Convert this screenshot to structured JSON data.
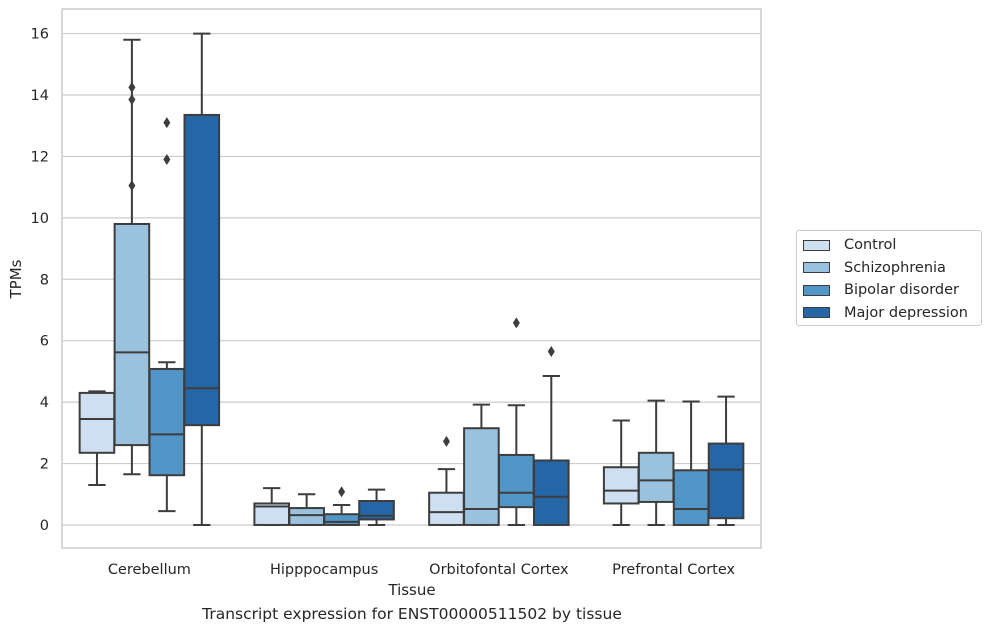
{
  "chart_data": {
    "type": "box",
    "xlabel": "Tissue",
    "ylabel": "TPMs",
    "ylim": [
      -0.75,
      16.8
    ],
    "yticks": [
      0,
      2,
      4,
      6,
      8,
      10,
      12,
      14,
      16
    ],
    "grid": "y",
    "legend_placement": "right",
    "categories": [
      "Cerebellum",
      "Hipppocampus",
      "Orbitofontal Cortex",
      "Prefrontal Cortex"
    ],
    "series": [
      {
        "name": "Control",
        "color": "#cddff0",
        "boxes": [
          {
            "whislo": 1.3,
            "q1": 2.35,
            "med": 3.45,
            "q3": 4.3,
            "whishi": 4.35,
            "fliers": []
          },
          {
            "whislo": 0.0,
            "q1": 0.0,
            "med": 0.6,
            "q3": 0.7,
            "whishi": 1.2,
            "fliers": []
          },
          {
            "whislo": 0.0,
            "q1": 0.0,
            "med": 0.42,
            "q3": 1.05,
            "whishi": 1.82,
            "fliers": [
              2.72
            ]
          },
          {
            "whislo": 0.0,
            "q1": 0.7,
            "med": 1.12,
            "q3": 1.88,
            "whishi": 3.4,
            "fliers": []
          }
        ]
      },
      {
        "name": "Schizophrenia",
        "color": "#9ac2de",
        "boxes": [
          {
            "whislo": 1.65,
            "q1": 2.6,
            "med": 5.62,
            "q3": 9.8,
            "whishi": 15.8,
            "fliers": [
              11.05,
              13.85,
              14.25
            ]
          },
          {
            "whislo": 0.0,
            "q1": 0.0,
            "med": 0.32,
            "q3": 0.55,
            "whishi": 1.0,
            "fliers": []
          },
          {
            "whislo": 0.0,
            "q1": 0.0,
            "med": 0.52,
            "q3": 3.15,
            "whishi": 3.92,
            "fliers": []
          },
          {
            "whislo": 0.0,
            "q1": 0.75,
            "med": 1.45,
            "q3": 2.35,
            "whishi": 4.05,
            "fliers": []
          }
        ]
      },
      {
        "name": "Bipolar disorder",
        "color": "#5296c8",
        "boxes": [
          {
            "whislo": 0.45,
            "q1": 1.62,
            "med": 2.95,
            "q3": 5.08,
            "whishi": 5.3,
            "fliers": [
              11.9,
              13.1
            ]
          },
          {
            "whislo": 0.0,
            "q1": 0.0,
            "med": 0.1,
            "q3": 0.35,
            "whishi": 0.65,
            "fliers": [
              1.08
            ]
          },
          {
            "whislo": 0.0,
            "q1": 0.58,
            "med": 1.05,
            "q3": 2.28,
            "whishi": 3.9,
            "fliers": [
              6.58
            ]
          },
          {
            "whislo": 0.0,
            "q1": 0.0,
            "med": 0.52,
            "q3": 1.78,
            "whishi": 4.02,
            "fliers": []
          }
        ]
      },
      {
        "name": "Major depression",
        "color": "#2566a6",
        "boxes": [
          {
            "whislo": 0.0,
            "q1": 3.25,
            "med": 4.45,
            "q3": 13.35,
            "whishi": 16.0,
            "fliers": []
          },
          {
            "whislo": 0.0,
            "q1": 0.18,
            "med": 0.3,
            "q3": 0.78,
            "whishi": 1.15,
            "fliers": []
          },
          {
            "whislo": 0.0,
            "q1": 0.0,
            "med": 0.92,
            "q3": 2.1,
            "whishi": 4.85,
            "fliers": [
              5.65
            ]
          },
          {
            "whislo": 0.0,
            "q1": 0.22,
            "med": 1.8,
            "q3": 2.65,
            "whishi": 4.18,
            "fliers": []
          }
        ]
      }
    ]
  },
  "caption": "Transcript expression for ENST00000511502 by tissue"
}
